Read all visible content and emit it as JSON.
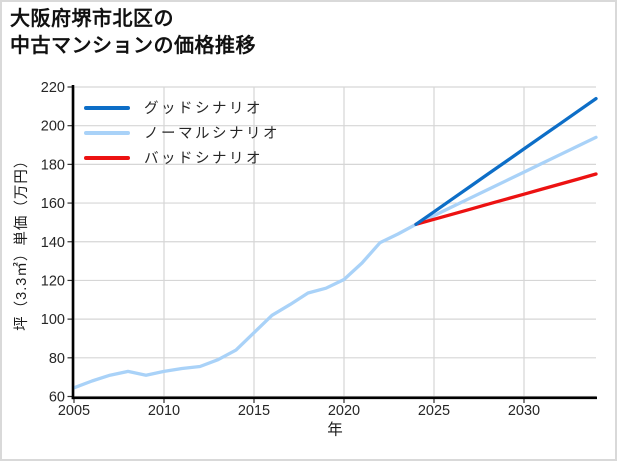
{
  "page": {
    "background": "#ffffff",
    "frame_color": "#d9d9d9"
  },
  "chart_data": {
    "type": "line",
    "title": "大阪府堺市北区の\n中古マンションの価格推移",
    "xlabel": "年",
    "ylabel": "坪（3.3㎡）単価（万円）",
    "xlim": [
      2005,
      2034
    ],
    "ylim": [
      60,
      220
    ],
    "xticks": [
      2005,
      2010,
      2015,
      2020,
      2025,
      2030
    ],
    "yticks": [
      60,
      80,
      100,
      120,
      140,
      160,
      180,
      200,
      220
    ],
    "grid": true,
    "grid_color": "#d6d6d6",
    "axis_color": "#000000",
    "tick_label_color": "#262626",
    "legend_position": "upper-left",
    "series": [
      {
        "name": "グッドシナリオ",
        "color": "#0d6ec7",
        "x": [
          2024,
          2025,
          2026,
          2027,
          2028,
          2029,
          2030,
          2031,
          2032,
          2033,
          2034
        ],
        "y": [
          149,
          155.5,
          162,
          168.5,
          175,
          181.5,
          188,
          194.5,
          201,
          207.5,
          214
        ]
      },
      {
        "name": "ノーマルシナリオ",
        "color": "#a9d2f8",
        "x": [
          2005,
          2006,
          2007,
          2008,
          2009,
          2010,
          2011,
          2012,
          2013,
          2014,
          2015,
          2016,
          2017,
          2018,
          2019,
          2020,
          2021,
          2022,
          2023,
          2024,
          2025,
          2026,
          2027,
          2028,
          2029,
          2030,
          2031,
          2032,
          2033,
          2034
        ],
        "y": [
          64.5,
          68,
          71,
          73,
          71,
          73,
          74.5,
          75.5,
          79,
          84,
          93,
          102,
          107.5,
          113.5,
          116,
          120.5,
          129,
          139.5,
          144,
          149,
          153.5,
          158,
          162.5,
          167,
          171.5,
          176,
          180.5,
          185,
          189.5,
          194
        ]
      },
      {
        "name": "バッドシナリオ",
        "color": "#ec1212",
        "x": [
          2024,
          2025,
          2026,
          2027,
          2028,
          2029,
          2030,
          2031,
          2032,
          2033,
          2034
        ],
        "y": [
          149,
          151.6,
          154.2,
          156.8,
          159.4,
          162,
          164.6,
          167.2,
          169.8,
          172.4,
          175
        ]
      }
    ]
  }
}
